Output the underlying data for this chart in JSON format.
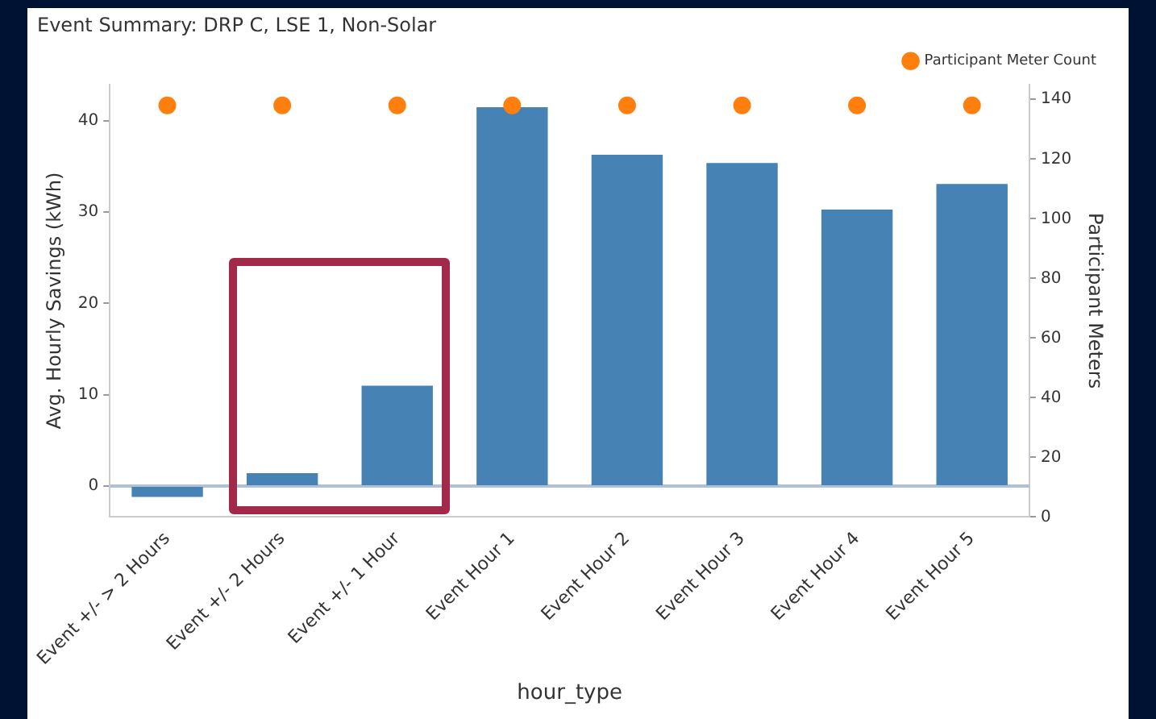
{
  "chart_data": {
    "type": "bar",
    "title": "Event Summary: DRP C, LSE 1, Non-Solar",
    "xlabel": "hour_type",
    "ylabel": "Avg. Hourly Savings (kWh)",
    "y2label": "Participant Meters",
    "categories": [
      "Event +/- > 2 Hours",
      "Event +/- 2 Hours",
      "Event +/- 1 Hour",
      "Event Hour 1",
      "Event Hour 2",
      "Event Hour 3",
      "Event Hour 4",
      "Event Hour 5"
    ],
    "series": [
      {
        "color": "#4682b4",
        "values": [
          -1.2,
          1.4,
          11.0,
          41.5,
          36.3,
          35.4,
          30.3,
          33.1
        ]
      },
      {
        "type": "scatter",
        "name": "Participant Meter Count",
        "color": "#ff7f0e",
        "axis": "y2",
        "marker": "circle",
        "values": [
          138,
          138,
          138,
          138,
          138,
          138,
          138,
          138
        ]
      }
    ],
    "ylim": [
      -3.4,
      44
    ],
    "yticks": [
      0,
      10,
      20,
      30,
      40
    ],
    "y2lim": [
      0,
      145
    ],
    "y2ticks": [
      0,
      20,
      40,
      60,
      80,
      100,
      120,
      140
    ],
    "ref_lines": [
      {
        "axis": "y",
        "value": 0,
        "color": "#aec0dc"
      }
    ],
    "grid": false,
    "legend": "top right"
  }
}
